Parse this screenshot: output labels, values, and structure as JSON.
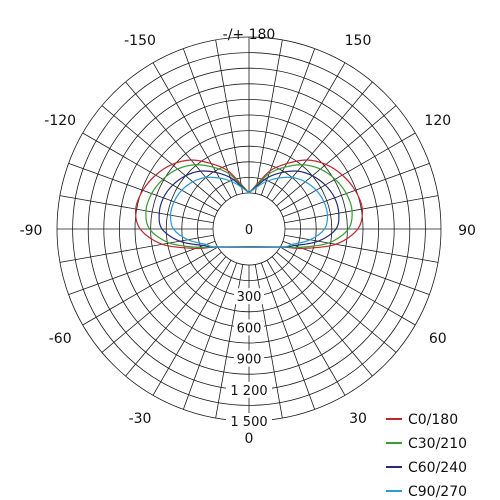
{
  "chart_data": {
    "type": "polar",
    "angle_labels": [
      {
        "angle": 180,
        "text": "-/+ 180"
      },
      {
        "angle": 150,
        "text": "150"
      },
      {
        "angle": -150,
        "text": "-150"
      },
      {
        "angle": 120,
        "text": "120"
      },
      {
        "angle": -120,
        "text": "-120"
      },
      {
        "angle": 90,
        "text": "90"
      },
      {
        "angle": -90,
        "text": "-90"
      },
      {
        "angle": 60,
        "text": "60"
      },
      {
        "angle": -60,
        "text": "-60"
      },
      {
        "angle": 30,
        "text": "30"
      },
      {
        "angle": -30,
        "text": "-30"
      },
      {
        "angle": 0,
        "text": "0"
      }
    ],
    "radial_ticks": [
      {
        "value": 0,
        "text": "0"
      },
      {
        "value": 300,
        "text": "300"
      },
      {
        "value": 600,
        "text": "600"
      },
      {
        "value": 900,
        "text": "900"
      },
      {
        "value": 1200,
        "text": "1 200"
      },
      {
        "value": 1500,
        "text": "1 500"
      }
    ],
    "angle_step_deg": 10,
    "series": [
      {
        "name": "C0/180",
        "color": "#c0272d",
        "angles": [
          60,
          70,
          80,
          90,
          100,
          110,
          120,
          130,
          140,
          150,
          160,
          170,
          180
        ],
        "values": [
          0,
          200,
          500,
          700,
          760,
          740,
          690,
          620,
          520,
          380,
          250,
          90,
          0
        ]
      },
      {
        "name": "C30/210",
        "color": "#3a9a35",
        "angles": [
          60,
          70,
          80,
          90,
          100,
          110,
          120,
          130,
          140,
          150,
          160,
          170,
          180
        ],
        "values": [
          0,
          170,
          430,
          610,
          660,
          650,
          610,
          550,
          460,
          340,
          220,
          80,
          0
        ]
      },
      {
        "name": "C60/240",
        "color": "#262a78",
        "angles": [
          60,
          70,
          80,
          90,
          100,
          110,
          120,
          130,
          140,
          150,
          160,
          170,
          180
        ],
        "values": [
          0,
          120,
          330,
          490,
          530,
          530,
          500,
          450,
          380,
          280,
          180,
          70,
          0
        ]
      },
      {
        "name": "C90/270",
        "color": "#2b9bd3",
        "angles": [
          60,
          70,
          80,
          90,
          100,
          110,
          120,
          130,
          140,
          150,
          160,
          170,
          180
        ],
        "values": [
          0,
          90,
          250,
          380,
          420,
          420,
          400,
          360,
          300,
          220,
          140,
          60,
          0
        ]
      }
    ]
  }
}
